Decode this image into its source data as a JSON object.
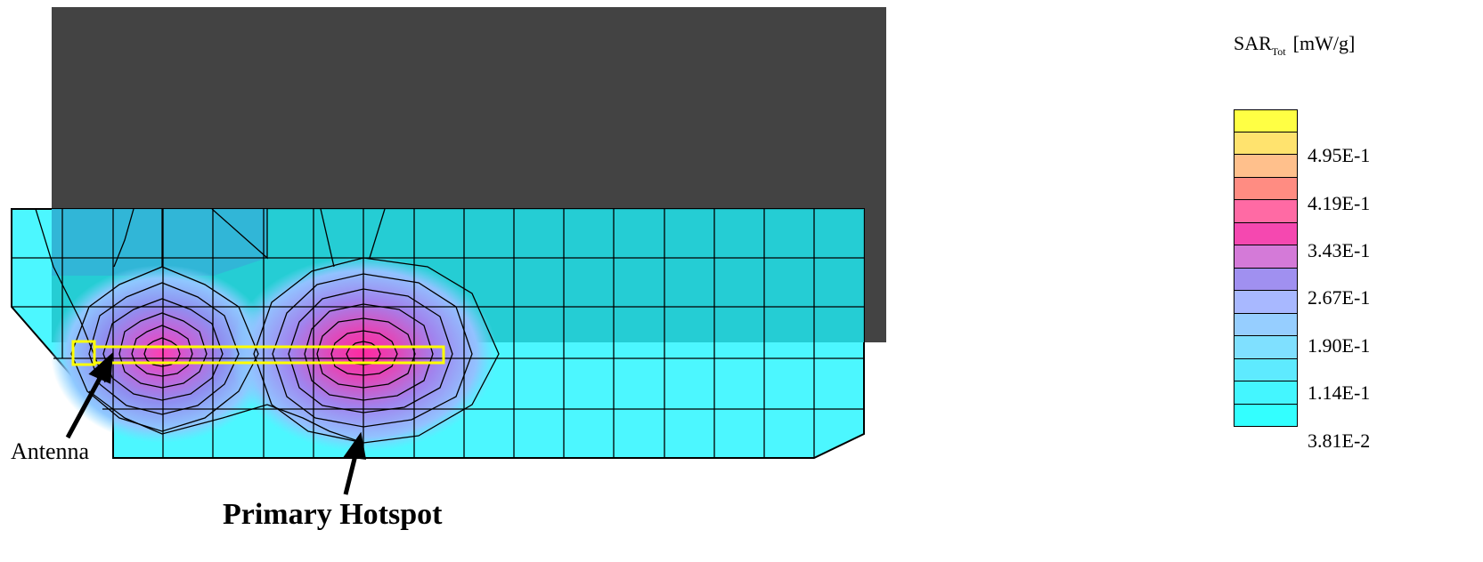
{
  "labels": {
    "antenna": "Antenna",
    "primary_hotspot": "Primary Hotspot"
  },
  "legend": {
    "quantity": "SAR",
    "subscript": "Tot",
    "unit": "[mW/g]",
    "swatch_colors": [
      "#ffff44",
      "#ffe36e",
      "#ffc08c",
      "#ff8c82",
      "#ff6aa4",
      "#f548b0",
      "#d47ad8",
      "#a090f0",
      "#a8b8ff",
      "#96ceff",
      "#7fe0ff",
      "#5eeaff",
      "#44f6ff",
      "#33ffff"
    ],
    "tick_labels": [
      "4.95E-1",
      "4.19E-1",
      "3.43E-1",
      "2.67E-1",
      "1.90E-1",
      "1.14E-1",
      "3.81E-2"
    ]
  },
  "colors": {
    "device_body": "#434343",
    "cyan_field": "#4cf7ff",
    "teal_overlap": "#1ec6cc",
    "antenna_outline": "#ffff00"
  }
}
